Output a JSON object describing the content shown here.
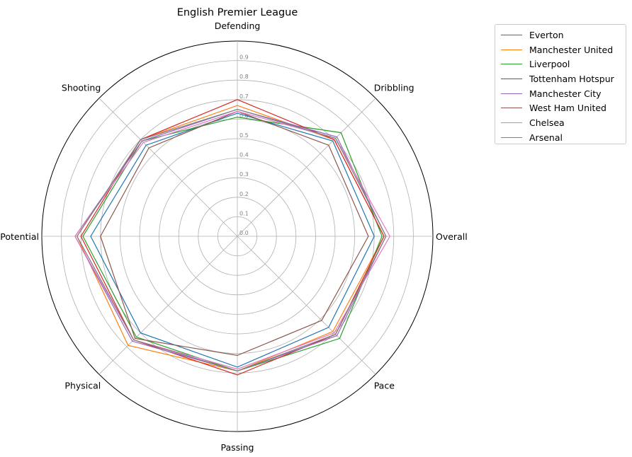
{
  "chart_data": {
    "type": "radar",
    "title": "English Premier League",
    "categories": [
      "Overall",
      "Dribbling",
      "Defending",
      "Shooting",
      "Potential",
      "Physical",
      "Passing",
      "Pace"
    ],
    "radial_ticks": [
      "0.0",
      "0.1",
      "0.2",
      "0.3",
      "0.4",
      "0.5",
      "0.6",
      "0.7",
      "0.8",
      "0.9"
    ],
    "rlim": [
      0,
      1.0
    ],
    "grid": true,
    "legend_position": "outside-top-right",
    "series": [
      {
        "name": "Everton",
        "color": "#1f77b4",
        "values": [
          0.7,
          0.69,
          0.63,
          0.66,
          0.75,
          0.7,
          0.67,
          0.66
        ]
      },
      {
        "name": "Manchester United",
        "color": "#ff7f0e",
        "values": [
          0.75,
          0.7,
          0.67,
          0.7,
          0.82,
          0.79,
          0.69,
          0.69
        ]
      },
      {
        "name": "Liverpool",
        "color": "#2ca02c",
        "values": [
          0.74,
          0.75,
          0.61,
          0.69,
          0.79,
          0.73,
          0.69,
          0.74
        ]
      },
      {
        "name": "Tottenham Hotspur",
        "color": "#d62728",
        "values": [
          0.75,
          0.7,
          0.7,
          0.7,
          0.8,
          0.75,
          0.71,
          0.71
        ]
      },
      {
        "name": "Manchester City",
        "color": "#9467bd",
        "values": [
          0.76,
          0.72,
          0.65,
          0.69,
          0.83,
          0.76,
          0.69,
          0.72
        ]
      },
      {
        "name": "West Ham United",
        "color": "#8c564b",
        "values": [
          0.67,
          0.66,
          0.64,
          0.64,
          0.7,
          0.74,
          0.61,
          0.61
        ]
      },
      {
        "name": "Chelsea",
        "color": "#e377c2",
        "values": [
          0.78,
          0.71,
          0.64,
          0.68,
          0.83,
          0.75,
          0.68,
          0.7
        ]
      },
      {
        "name": "Arsenal",
        "color": "#7f7f7f",
        "values": [
          0.76,
          0.71,
          0.65,
          0.7,
          0.82,
          0.75,
          0.69,
          0.71
        ]
      }
    ]
  }
}
